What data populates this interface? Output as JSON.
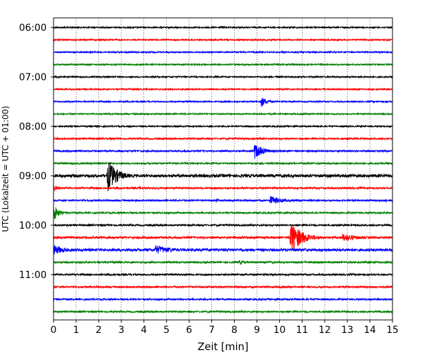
{
  "chart_data": {
    "type": "line",
    "title": "",
    "xlabel": "Zeit  [min]",
    "ylabel": "UTC (Lokalzeit = UTC + 01:00)",
    "xlim": [
      0,
      15
    ],
    "x_ticks": [
      "0",
      "1",
      "2",
      "3",
      "4",
      "5",
      "6",
      "7",
      "8",
      "9",
      "10",
      "11",
      "12",
      "13",
      "14",
      "15"
    ],
    "y_ticks": [
      "06:00",
      "07:00",
      "08:00",
      "09:00",
      "10:00",
      "11:00"
    ],
    "grid": "vertical dotted",
    "trace_interval_minutes": 15,
    "trace_colors": [
      "#000000",
      "#ff0000",
      "#0000ff",
      "#008000"
    ],
    "traces": [
      {
        "start": "06:00",
        "color": "#000000",
        "amplitude": 1,
        "events": []
      },
      {
        "start": "06:15",
        "color": "#ff0000",
        "amplitude": 1,
        "events": []
      },
      {
        "start": "06:30",
        "color": "#0000ff",
        "amplitude": 1,
        "events": []
      },
      {
        "start": "06:45",
        "color": "#008000",
        "amplitude": 1,
        "events": []
      },
      {
        "start": "07:00",
        "color": "#000000",
        "amplitude": 1,
        "events": []
      },
      {
        "start": "07:15",
        "color": "#ff0000",
        "amplitude": 1,
        "events": []
      },
      {
        "start": "07:30",
        "color": "#0000ff",
        "amplitude": 1,
        "events": [
          {
            "t": 9.2,
            "amp": 8,
            "dur": 0.8
          }
        ]
      },
      {
        "start": "07:45",
        "color": "#008000",
        "amplitude": 1,
        "events": []
      },
      {
        "start": "08:00",
        "color": "#000000",
        "amplitude": 1,
        "events": [
          {
            "t": 9.9,
            "amp": 2,
            "dur": 0.3
          }
        ]
      },
      {
        "start": "08:15",
        "color": "#ff0000",
        "amplitude": 1.2,
        "events": [
          {
            "t": 9.3,
            "amp": 2,
            "dur": 0.6
          }
        ]
      },
      {
        "start": "08:30",
        "color": "#0000ff",
        "amplitude": 1.2,
        "events": [
          {
            "t": 2.9,
            "amp": 3,
            "dur": 0.4
          },
          {
            "t": 8.9,
            "amp": 12,
            "dur": 1.2
          }
        ]
      },
      {
        "start": "08:45",
        "color": "#008000",
        "amplitude": 1.2,
        "events": [
          {
            "t": 14.8,
            "amp": 3,
            "dur": 0.2
          }
        ]
      },
      {
        "start": "09:00",
        "color": "#000000",
        "amplitude": 2.2,
        "events": [
          {
            "t": 2.4,
            "amp": 24,
            "dur": 1.3
          }
        ]
      },
      {
        "start": "09:15",
        "color": "#ff0000",
        "amplitude": 1.3,
        "events": [
          {
            "t": 0.0,
            "amp": 5,
            "dur": 0.8
          },
          {
            "t": 3.8,
            "amp": 3,
            "dur": 0.6
          }
        ]
      },
      {
        "start": "09:30",
        "color": "#0000ff",
        "amplitude": 1.2,
        "events": [
          {
            "t": 7.2,
            "amp": 3,
            "dur": 0.4
          },
          {
            "t": 9.6,
            "amp": 7,
            "dur": 1.6
          },
          {
            "t": 14.7,
            "amp": 4,
            "dur": 0.3
          }
        ]
      },
      {
        "start": "09:45",
        "color": "#008000",
        "amplitude": 1.2,
        "events": [
          {
            "t": 0.0,
            "amp": 14,
            "dur": 0.6
          }
        ]
      },
      {
        "start": "10:00",
        "color": "#000000",
        "amplitude": 1.2,
        "events": []
      },
      {
        "start": "10:15",
        "color": "#ff0000",
        "amplitude": 1.5,
        "events": [
          {
            "t": 10.5,
            "amp": 24,
            "dur": 1.6
          },
          {
            "t": 12.8,
            "amp": 6,
            "dur": 2.2
          }
        ]
      },
      {
        "start": "10:30",
        "color": "#0000ff",
        "amplitude": 2.0,
        "events": [
          {
            "t": 0.0,
            "amp": 8,
            "dur": 1.5
          },
          {
            "t": 4.5,
            "amp": 7,
            "dur": 2.5
          }
        ]
      },
      {
        "start": "10:45",
        "color": "#008000",
        "amplitude": 1.3,
        "events": [
          {
            "t": 8.2,
            "amp": 3,
            "dur": 1.8
          }
        ]
      },
      {
        "start": "11:00",
        "color": "#000000",
        "amplitude": 1.2,
        "events": []
      },
      {
        "start": "11:15",
        "color": "#ff0000",
        "amplitude": 1.3,
        "events": [
          {
            "t": 6.0,
            "amp": 3,
            "dur": 0.4
          }
        ]
      },
      {
        "start": "11:30",
        "color": "#0000ff",
        "amplitude": 1.2,
        "events": []
      },
      {
        "start": "11:45",
        "color": "#008000",
        "amplitude": 1.2,
        "events": []
      }
    ]
  }
}
